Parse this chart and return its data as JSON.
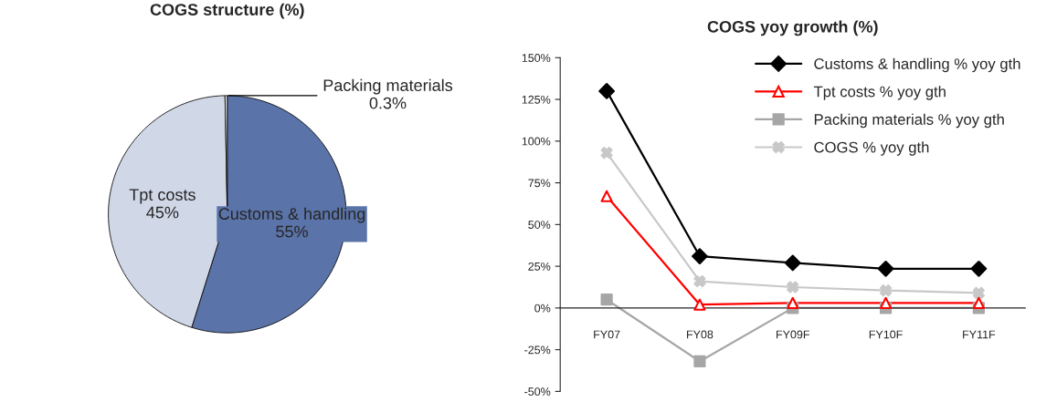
{
  "chart_data": [
    {
      "type": "pie",
      "title": "COGS structure (%)",
      "categories": [
        "Customs & handling",
        "Tpt costs",
        "Packing materials"
      ],
      "values": [
        55,
        45,
        0.3
      ],
      "value_labels": [
        "55%",
        "45%",
        "0.3%"
      ],
      "colors": [
        "#5a73a8",
        "#d0d8e8",
        "#f2f2f2"
      ]
    },
    {
      "type": "line",
      "title": "COGS yoy growth (%)",
      "categories": [
        "FY07",
        "FY08",
        "FY09F",
        "FY10F",
        "FY11F"
      ],
      "series": [
        {
          "name": "Customs & handling % yoy gth",
          "color": "#000000",
          "marker": "diamond",
          "values": [
            130,
            31,
            27,
            23.5,
            23.5
          ]
        },
        {
          "name": "Tpt costs % yoy gth",
          "color": "#ff0000",
          "marker": "triangle",
          "values": [
            67,
            2,
            3,
            3,
            3
          ]
        },
        {
          "name": "Packing materials % yoy gth",
          "color": "#a6a6a6",
          "marker": "square",
          "values": [
            5,
            -32,
            0,
            0,
            0
          ]
        },
        {
          "name": "COGS % yoy gth",
          "color": "#c8c8c8",
          "marker": "cross",
          "values": [
            93,
            16,
            12.5,
            10.5,
            9
          ]
        }
      ],
      "ylim": [
        -50,
        150
      ],
      "yticks": [
        {
          "value": -50,
          "label": "-50%"
        },
        {
          "value": -25,
          "label": "-25%"
        },
        {
          "value": 0,
          "label": "0%"
        },
        {
          "value": 25,
          "label": "25%"
        },
        {
          "value": 50,
          "label": "50%"
        },
        {
          "value": 75,
          "label": "75%"
        },
        {
          "value": 100,
          "label": "100%"
        },
        {
          "value": 125,
          "label": "125%"
        },
        {
          "value": 150,
          "label": "150%"
        }
      ],
      "grid": false,
      "legend": "top right"
    }
  ]
}
